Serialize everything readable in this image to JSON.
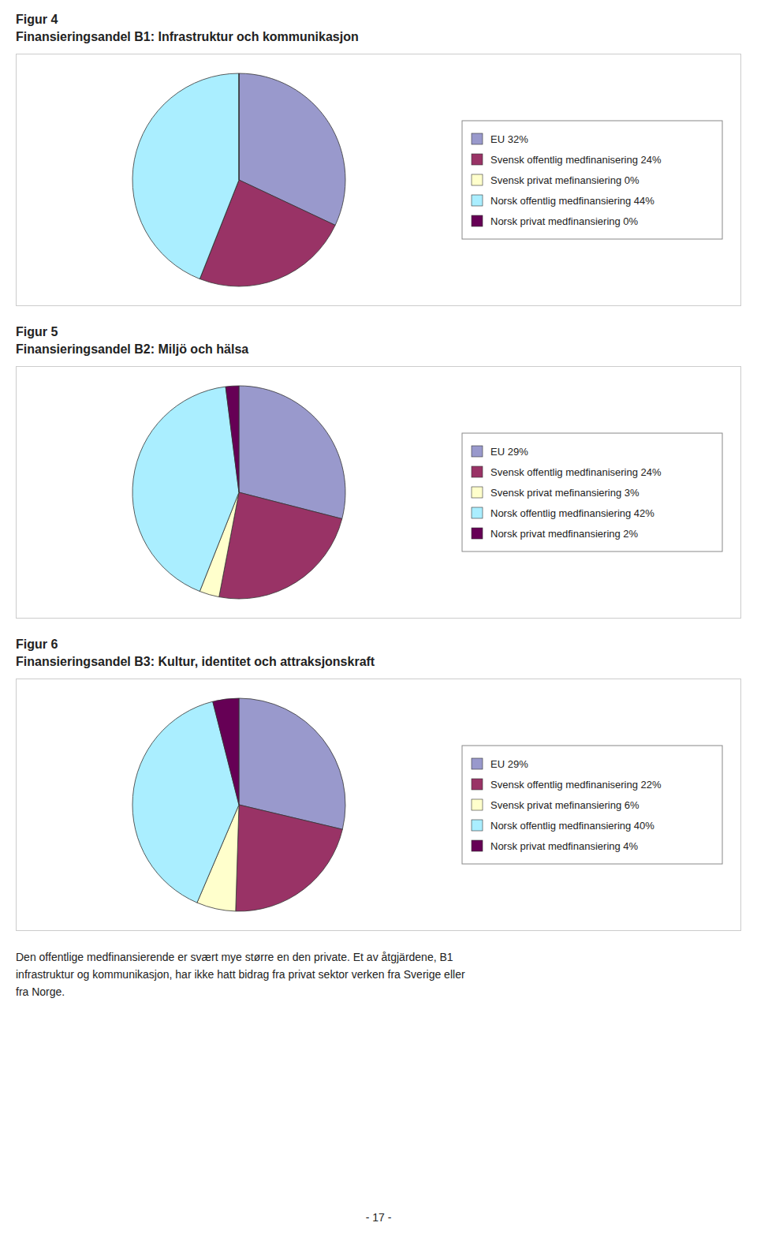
{
  "chart_data": [
    {
      "type": "pie",
      "title": "Figur 4",
      "subtitle": "Finansieringsandel B1: Infrastruktur och kommunikasjon",
      "categories": [
        "EU 32%",
        "Svensk offentlig medfinanisering 24%",
        "Svensk privat mefinansiering 0%",
        "Norsk offentlig medfinansiering 44%",
        "Norsk privat medfinansiering 0%"
      ],
      "values": [
        32,
        24,
        0.001,
        44,
        0.001
      ],
      "colors": [
        "#9999cc",
        "#993366",
        "#ffffcc",
        "#aaeeff",
        "#660055"
      ],
      "legend": "right"
    },
    {
      "type": "pie",
      "title": "Figur 5",
      "subtitle": "Finansieringsandel B2:  Miljö och hälsa",
      "categories": [
        "EU 29%",
        "Svensk offentlig medfinanisering 24%",
        "Svensk privat mefinansiering 3%",
        "Norsk offentlig medfinansiering 42%",
        "Norsk privat medfinansiering 2%"
      ],
      "values": [
        29,
        24,
        3,
        42,
        2
      ],
      "colors": [
        "#9999cc",
        "#993366",
        "#ffffcc",
        "#aaeeff",
        "#660055"
      ],
      "legend": "right"
    },
    {
      "type": "pie",
      "title": "Figur 6",
      "subtitle": "Finansieringsandel B3: Kultur, identitet och attraksjonskraft",
      "categories": [
        "EU 29%",
        "Svensk offentlig medfinanisering 22%",
        "Svensk privat mefinansiering 6%",
        "Norsk offentlig medfinansiering 40%",
        "Norsk privat medfinansiering 4%"
      ],
      "values": [
        29,
        22,
        6,
        40,
        4
      ],
      "colors": [
        "#9999cc",
        "#993366",
        "#ffffcc",
        "#aaeeff",
        "#660055"
      ],
      "legend": "right"
    }
  ],
  "footer": "Den offentlige medfinansierende er svært mye større en den private. Et av åtgjärdene, B1\ninfrastruktur og kommunikasjon, har ikke hatt bidrag fra privat sektor verken fra Sverige eller\nfra Norge.",
  "page_number": "- 17 -"
}
